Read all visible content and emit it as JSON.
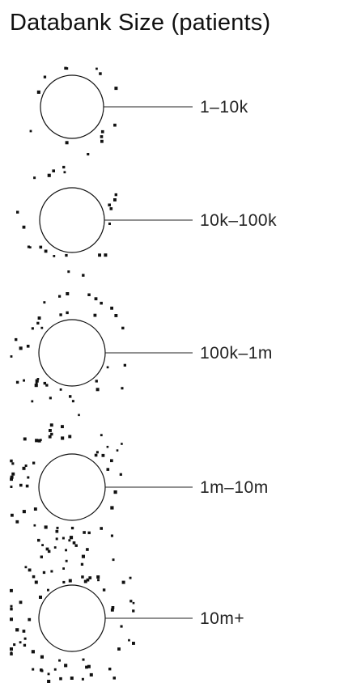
{
  "legend": {
    "title": "Databank Size (patients)",
    "tiers": [
      {
        "label": "1–10k",
        "density": 1
      },
      {
        "label": "10k–100k",
        "density": 2
      },
      {
        "label": "100k–1m",
        "density": 3
      },
      {
        "label": "1m–10m",
        "density": 4
      },
      {
        "label": "10m+",
        "density": 5
      }
    ]
  }
}
